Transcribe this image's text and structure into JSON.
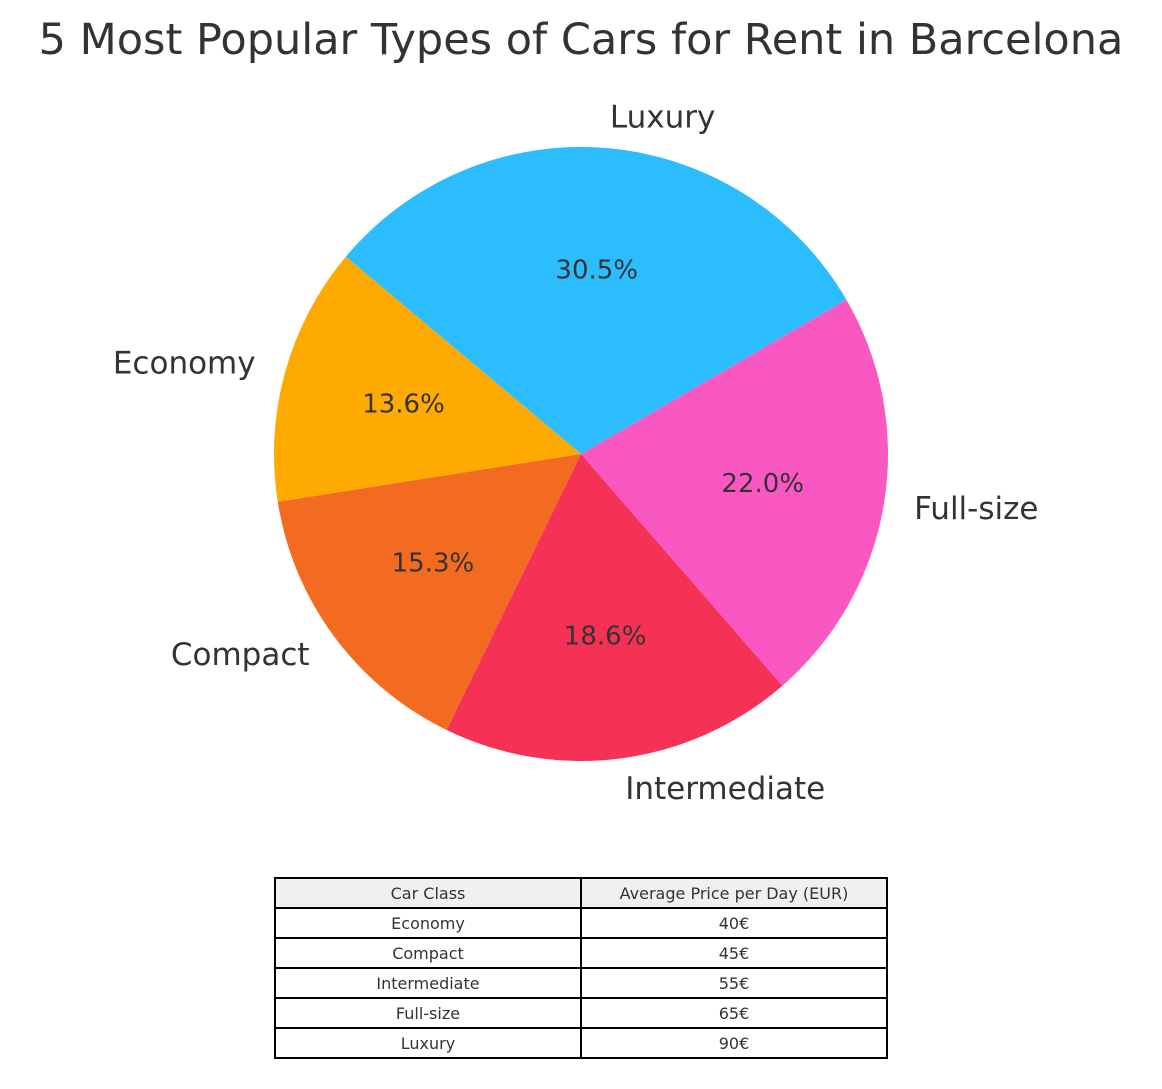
{
  "chart_data": {
    "type": "pie",
    "title": "5 Most Popular Types of Cars for Rent in Barcelona",
    "categories": [
      "Economy",
      "Compact",
      "Intermediate",
      "Full-size",
      "Luxury"
    ],
    "values": [
      13.6,
      15.3,
      18.6,
      22.0,
      30.5
    ],
    "percent_labels": [
      "13.6%",
      "15.3%",
      "18.6%",
      "22.0%",
      "30.5%"
    ],
    "colors": [
      "#FFAA00",
      "#F26B21",
      "#F53255",
      "#F958C2",
      "#2BBDFE"
    ],
    "start_angle_deg": 140,
    "direction": "counterclockwise",
    "legend": "none"
  },
  "table": {
    "headers": [
      "Car Class",
      "Average Price per Day (EUR)"
    ],
    "rows": [
      [
        "Economy",
        "40€"
      ],
      [
        "Compact",
        "45€"
      ],
      [
        "Intermediate",
        "55€"
      ],
      [
        "Full-size",
        "65€"
      ],
      [
        "Luxury",
        "90€"
      ]
    ]
  }
}
